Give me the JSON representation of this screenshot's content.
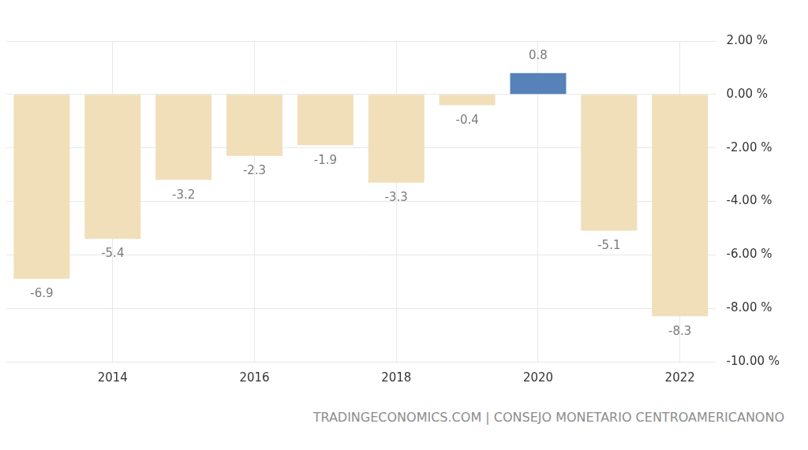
{
  "chart_data": {
    "type": "bar",
    "source": "TRADINGECONOMICS.COM | CONSEJO MONETARIO CENTROAMERICANONO",
    "categories": [
      null,
      "2014",
      null,
      "2016",
      null,
      "2018",
      null,
      "2020",
      null,
      "2022"
    ],
    "values": [
      -6.9,
      -5.4,
      -3.2,
      -2.3,
      -1.9,
      -3.3,
      -0.4,
      0.8,
      -5.1,
      -8.3
    ],
    "colors": [
      "#f0dfb9",
      "#f0dfb9",
      "#f0dfb9",
      "#f0dfb9",
      "#f0dfb9",
      "#f0dfb9",
      "#f0dfb9",
      "#5681b9",
      "#f0dfb9",
      "#f0dfb9"
    ],
    "ylim": [
      -10,
      2
    ],
    "yticks": [
      {
        "value": -10,
        "label": "-10.00 %"
      },
      {
        "value": -8,
        "label": "-8.00 %"
      },
      {
        "value": -6,
        "label": "-6.00 %"
      },
      {
        "value": -4,
        "label": "-4.00 %"
      },
      {
        "value": -2,
        "label": "-2.00 %"
      },
      {
        "value": 0,
        "label": "0.00 %"
      },
      {
        "value": 2,
        "label": "2.00 %"
      }
    ],
    "grid": true,
    "data_labels": true
  }
}
